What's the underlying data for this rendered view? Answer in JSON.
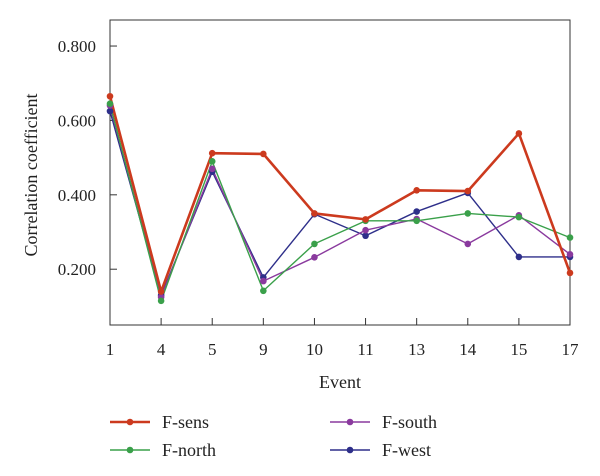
{
  "chart_data": {
    "type": "line",
    "title": "",
    "xlabel": "Event",
    "ylabel": "Correlation coefficient",
    "categories": [
      "1",
      "4",
      "5",
      "9",
      "10",
      "11",
      "13",
      "14",
      "15",
      "17"
    ],
    "yticks": [
      "0.200",
      "0.400",
      "0.600",
      "0.800"
    ],
    "ytick_values": [
      0.2,
      0.4,
      0.6,
      0.8
    ],
    "ylim": [
      0.05,
      0.87
    ],
    "grid": false,
    "legend_position": "bottom",
    "series": [
      {
        "name": "F-sens",
        "color": "#cc3a1e",
        "values": [
          0.665,
          0.14,
          0.512,
          0.51,
          0.35,
          0.334,
          0.412,
          0.41,
          0.565,
          0.19
        ]
      },
      {
        "name": "F-north",
        "color": "#3aa04a",
        "values": [
          0.645,
          0.115,
          0.49,
          0.142,
          0.268,
          0.33,
          0.33,
          0.35,
          0.34,
          0.285
        ]
      },
      {
        "name": "F-south",
        "color": "#8a3a9e",
        "values": [
          0.64,
          0.125,
          0.47,
          0.168,
          0.232,
          0.305,
          0.335,
          0.268,
          0.345,
          0.24
        ]
      },
      {
        "name": "F-west",
        "color": "#2e2f8a",
        "values": [
          0.625,
          0.13,
          0.462,
          0.178,
          0.348,
          0.29,
          0.355,
          0.405,
          0.233,
          0.233
        ]
      }
    ]
  }
}
